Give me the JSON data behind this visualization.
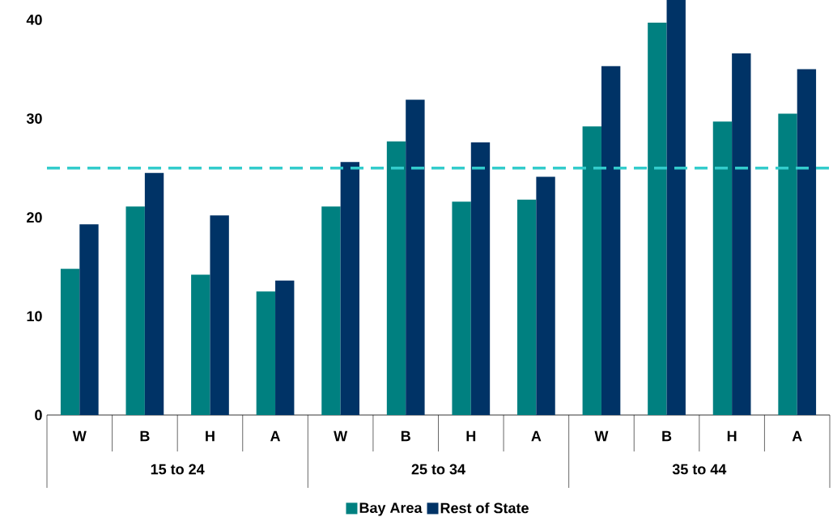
{
  "chart_data": {
    "type": "bar",
    "categories": [
      "W",
      "B",
      "H",
      "A",
      "W",
      "B",
      "H",
      "A",
      "W",
      "B",
      "H",
      "A"
    ],
    "series": [
      {
        "name": "Bay Area",
        "color": "#008080",
        "values": [
          14.8,
          21.1,
          14.2,
          12.5,
          21.1,
          27.7,
          21.6,
          21.8,
          29.2,
          39.7,
          29.7,
          30.5
        ]
      },
      {
        "name": "Rest of State",
        "color": "#003366",
        "values": [
          19.3,
          24.5,
          20.2,
          13.6,
          25.6,
          31.9,
          27.6,
          24.1,
          35.3,
          42,
          36.6,
          35.0
        ]
      }
    ],
    "annotations": [
      "15 to 24",
      "25 to 34",
      "35 to 44"
    ],
    "ylim": [
      0,
      42
    ],
    "yticks": [
      0,
      10,
      20,
      30,
      40
    ],
    "ref_lines": [
      {
        "axis": "y",
        "value": 25,
        "color": "#33cccc",
        "line_style": "dashed"
      }
    ],
    "grid": false,
    "legend": "bottom"
  }
}
